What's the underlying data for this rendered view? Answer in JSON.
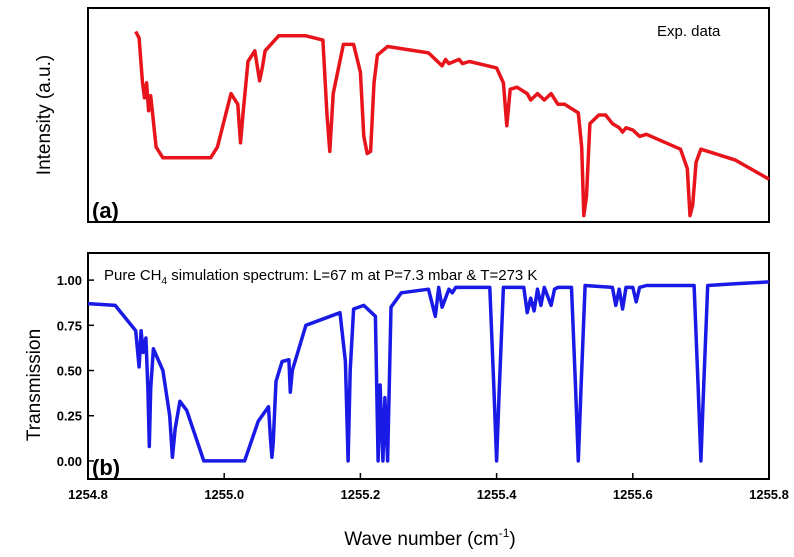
{
  "chart_data": [
    {
      "type": "line",
      "panel_label": "(a)",
      "ylabel": "Intensity (a.u.)",
      "annotation": "Exp. data",
      "yticks": false,
      "x_range": [
        1254.8,
        1255.8
      ],
      "y_range": [
        0,
        1
      ],
      "color": "#e8141b",
      "grid": false,
      "series": [
        {
          "x": [
            1254.87,
            1254.875,
            1254.88,
            1254.883,
            1254.886,
            1254.889,
            1254.892,
            1254.9,
            1254.91,
            1254.98,
            1254.99,
            1255.01,
            1255.02,
            1255.024,
            1255.028,
            1255.035,
            1255.045,
            1255.052,
            1255.056,
            1255.06,
            1255.08,
            1255.12,
            1255.145,
            1255.151,
            1255.155,
            1255.16,
            1255.175,
            1255.19,
            1255.2,
            1255.205,
            1255.21,
            1255.215,
            1255.22,
            1255.225,
            1255.24,
            1255.3,
            1255.32,
            1255.325,
            1255.33,
            1255.345,
            1255.35,
            1255.36,
            1255.4,
            1255.41,
            1255.415,
            1255.42,
            1255.43,
            1255.445,
            1255.45,
            1255.46,
            1255.47,
            1255.48,
            1255.49,
            1255.5,
            1255.52,
            1255.525,
            1255.528,
            1255.532,
            1255.537,
            1255.55,
            1255.56,
            1255.57,
            1255.58,
            1255.585,
            1255.59,
            1255.6,
            1255.61,
            1255.62,
            1255.67,
            1255.68,
            1255.684,
            1255.688,
            1255.693,
            1255.7,
            1255.75,
            1255.8
          ],
          "y": [
            0.89,
            0.86,
            0.65,
            0.58,
            0.65,
            0.52,
            0.59,
            0.35,
            0.3,
            0.3,
            0.35,
            0.6,
            0.55,
            0.37,
            0.52,
            0.75,
            0.8,
            0.66,
            0.72,
            0.8,
            0.87,
            0.87,
            0.85,
            0.5,
            0.33,
            0.6,
            0.83,
            0.83,
            0.7,
            0.4,
            0.32,
            0.33,
            0.65,
            0.78,
            0.82,
            0.79,
            0.73,
            0.76,
            0.74,
            0.76,
            0.74,
            0.75,
            0.72,
            0.65,
            0.45,
            0.62,
            0.63,
            0.6,
            0.57,
            0.6,
            0.57,
            0.6,
            0.55,
            0.55,
            0.51,
            0.35,
            0.03,
            0.12,
            0.46,
            0.5,
            0.5,
            0.46,
            0.44,
            0.42,
            0.44,
            0.43,
            0.4,
            0.41,
            0.34,
            0.25,
            0.03,
            0.08,
            0.28,
            0.34,
            0.29,
            0.2
          ]
        }
      ]
    },
    {
      "type": "line",
      "panel_label": "(b)",
      "ylabel": "Transmission",
      "xlabel": "Wave number (cm",
      "xlabel_sup": "-1",
      "xlabel_suffix": ")",
      "title": {
        "pre": "Pure CH",
        "sub": "4",
        "post": " simulation spectrum: L=67 m at P=7.3 mbar & T=273 K"
      },
      "x_range": [
        1254.8,
        1255.8
      ],
      "y_range": [
        -0.1,
        1.15
      ],
      "xticks": [
        "1254.8",
        "1255.0",
        "1255.2",
        "1255.4",
        "1255.6",
        "1255.8"
      ],
      "yticks": [
        "0.00",
        "0.25",
        "0.50",
        "0.75",
        "1.00"
      ],
      "color": "#1a1ae6",
      "grid": false,
      "series": [
        {
          "x": [
            1254.8,
            1254.84,
            1254.87,
            1254.875,
            1254.878,
            1254.881,
            1254.885,
            1254.888,
            1254.89,
            1254.892,
            1254.896,
            1254.91,
            1254.92,
            1254.924,
            1254.928,
            1254.935,
            1254.945,
            1254.97,
            1255.03,
            1255.05,
            1255.065,
            1255.068,
            1255.07,
            1255.072,
            1255.076,
            1255.085,
            1255.095,
            1255.097,
            1255.1,
            1255.12,
            1255.17,
            1255.178,
            1255.182,
            1255.185,
            1255.19,
            1255.205,
            1255.222,
            1255.226,
            1255.229,
            1255.233,
            1255.236,
            1255.24,
            1255.245,
            1255.26,
            1255.3,
            1255.31,
            1255.315,
            1255.32,
            1255.33,
            1255.335,
            1255.34,
            1255.39,
            1255.396,
            1255.4,
            1255.404,
            1255.41,
            1255.44,
            1255.445,
            1255.45,
            1255.455,
            1255.46,
            1255.465,
            1255.47,
            1255.48,
            1255.485,
            1255.49,
            1255.51,
            1255.516,
            1255.52,
            1255.524,
            1255.53,
            1255.57,
            1255.575,
            1255.58,
            1255.585,
            1255.59,
            1255.6,
            1255.605,
            1255.61,
            1255.62,
            1255.69,
            1255.696,
            1255.7,
            1255.704,
            1255.71,
            1255.75,
            1255.8
          ],
          "y": [
            0.87,
            0.86,
            0.72,
            0.52,
            0.72,
            0.6,
            0.68,
            0.4,
            0.08,
            0.4,
            0.62,
            0.5,
            0.25,
            0.02,
            0.18,
            0.33,
            0.28,
            0.0,
            0.0,
            0.22,
            0.3,
            0.12,
            0.02,
            0.1,
            0.44,
            0.55,
            0.56,
            0.38,
            0.5,
            0.75,
            0.82,
            0.55,
            0.0,
            0.5,
            0.84,
            0.86,
            0.8,
            0.0,
            0.42,
            0.0,
            0.35,
            0.0,
            0.85,
            0.93,
            0.95,
            0.8,
            0.96,
            0.85,
            0.95,
            0.93,
            0.96,
            0.96,
            0.4,
            0.0,
            0.4,
            0.96,
            0.96,
            0.82,
            0.9,
            0.83,
            0.95,
            0.86,
            0.96,
            0.86,
            0.95,
            0.96,
            0.96,
            0.4,
            0.0,
            0.4,
            0.97,
            0.96,
            0.86,
            0.95,
            0.84,
            0.96,
            0.96,
            0.88,
            0.96,
            0.97,
            0.97,
            0.4,
            0.0,
            0.4,
            0.97,
            0.98,
            0.99
          ]
        }
      ]
    }
  ]
}
